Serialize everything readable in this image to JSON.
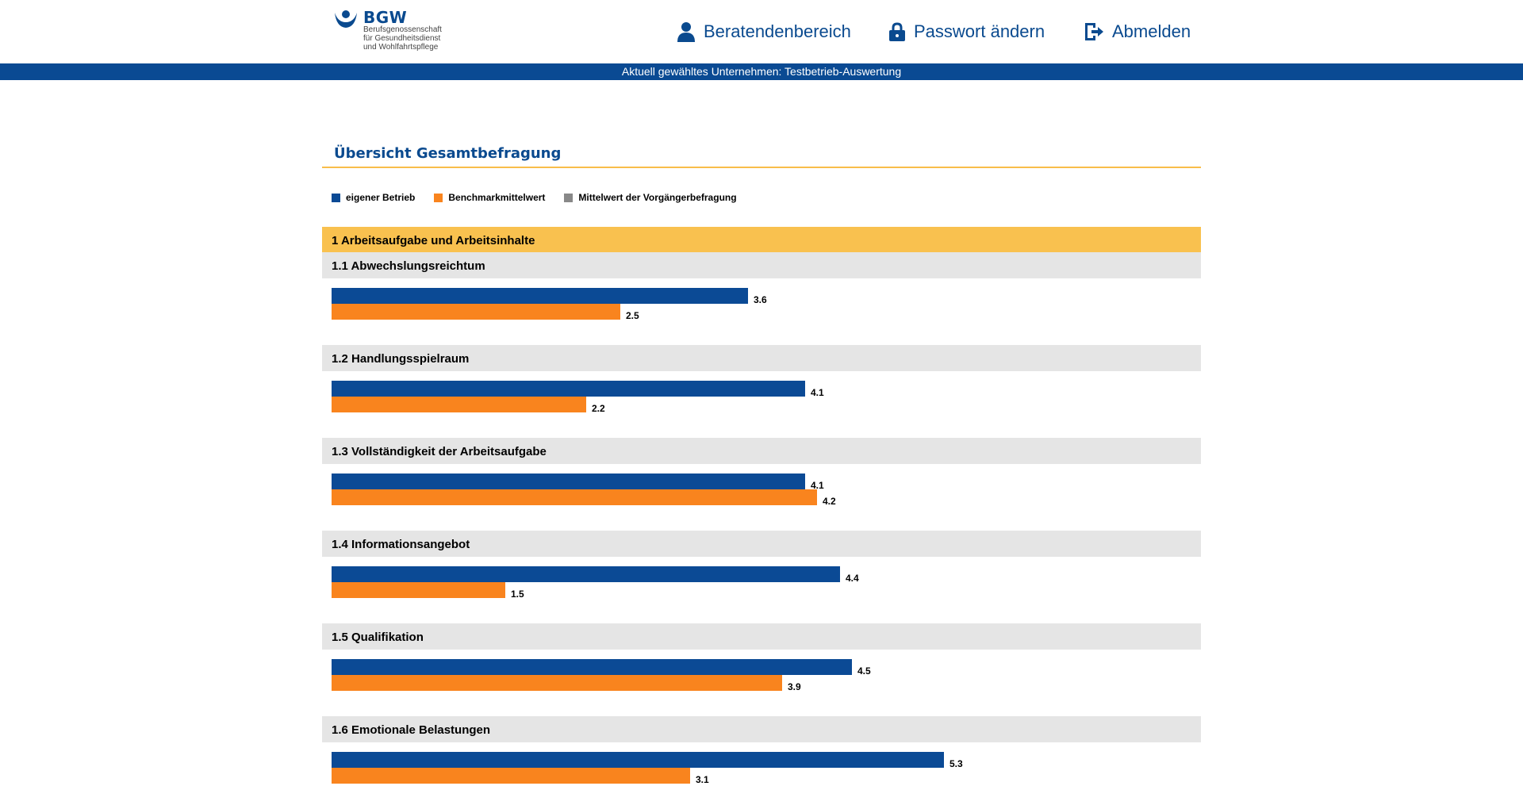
{
  "header": {
    "logo_title": "BGW",
    "logo_subtitle_lines": [
      "Berufsgenossenschaft",
      "für Gesundheitsdienst",
      "und Wohlfahrtspflege"
    ],
    "nav": [
      {
        "label": "Beratendenbereich",
        "icon": "person-icon"
      },
      {
        "label": "Passwort ändern",
        "icon": "lock-icon"
      },
      {
        "label": "Abmelden",
        "icon": "logout-icon"
      }
    ],
    "company_bar": "Aktuell gewähltes Unternehmen: Testbetrieb-Auswertung"
  },
  "page_title": "Übersicht Gesamtbefragung",
  "legend": [
    {
      "label": "eigener Betrieb",
      "color": "#0b4a95"
    },
    {
      "label": "Benchmarkmittelwert",
      "color": "#f9841e"
    },
    {
      "label": "Mittelwert der Vorgängerbefragung",
      "color": "#888888"
    }
  ],
  "colors": {
    "primary": "#0a4a8f",
    "own": "#0b4a95",
    "benchmark": "#f9841e",
    "section": "#f9c14f",
    "subsection": "#e5e5e5"
  },
  "chart_data": {
    "type": "bar",
    "orientation": "horizontal",
    "xlim": [
      0,
      7
    ],
    "section": "1 Arbeitsaufgabe und Arbeitsinhalte",
    "categories": [
      "1.1 Abwechslungsreichtum",
      "1.2 Handlungsspielraum",
      "1.3 Vollständigkeit der Arbeitsaufgabe",
      "1.4 Informationsangebot",
      "1.5 Qualifikation",
      "1.6 Emotionale Belastungen"
    ],
    "series": [
      {
        "name": "eigener Betrieb",
        "values": [
          3.6,
          4.1,
          4.1,
          4.4,
          4.5,
          5.3
        ]
      },
      {
        "name": "Benchmarkmittelwert",
        "values": [
          2.5,
          2.2,
          4.2,
          1.5,
          3.9,
          3.1
        ]
      }
    ]
  }
}
